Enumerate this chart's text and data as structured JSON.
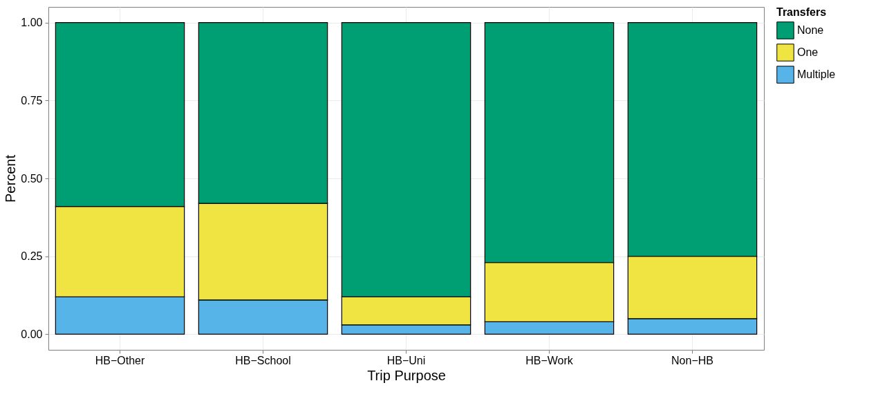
{
  "chart_data": {
    "type": "bar",
    "xlabel": "Trip Purpose",
    "ylabel": "Percent",
    "legend_title": "Transfers",
    "categories": [
      "HB−Other",
      "HB−School",
      "HB−Uni",
      "HB−Work",
      "Non−HB"
    ],
    "stacked": true,
    "series": [
      {
        "name": "Multiple",
        "color": "#56b4e9",
        "values": [
          0.12,
          0.11,
          0.03,
          0.04,
          0.05
        ]
      },
      {
        "name": "One",
        "color": "#f0e442",
        "values": [
          0.29,
          0.31,
          0.09,
          0.19,
          0.2
        ]
      },
      {
        "name": "None",
        "color": "#009e73",
        "values": [
          0.59,
          0.58,
          0.88,
          0.77,
          0.75
        ]
      }
    ],
    "ylim": [
      -0.05,
      1.05
    ],
    "yticks": [
      {
        "value": 0,
        "label": "0.00"
      },
      {
        "value": 0.25,
        "label": "0.25"
      },
      {
        "value": 0.5,
        "label": "0.50"
      },
      {
        "value": 0.75,
        "label": "0.75"
      },
      {
        "value": 1,
        "label": "1.00"
      }
    ],
    "grid": true,
    "legend": "right"
  }
}
